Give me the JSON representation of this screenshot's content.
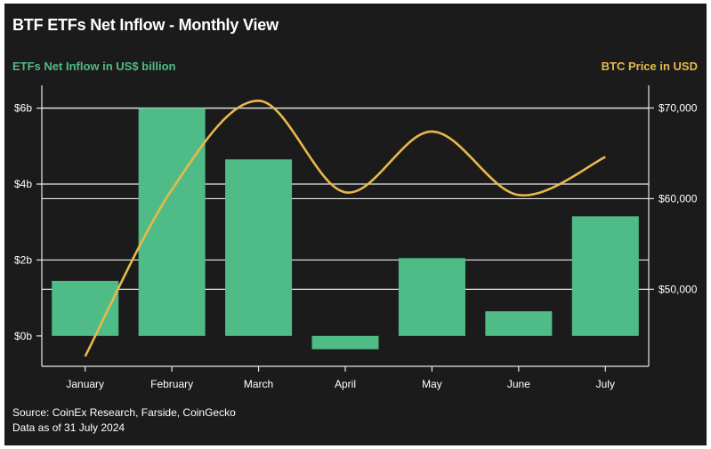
{
  "chart_data": {
    "type": "bar",
    "title": "BTF ETFs Net Inflow - Monthly View",
    "categories": [
      "January",
      "February",
      "March",
      "April",
      "May",
      "June",
      "July"
    ],
    "series": [
      {
        "name": "ETFs Net Inflow in US$ billion",
        "type": "bar",
        "axis": "left",
        "color": "#4fbb87",
        "values": [
          1.45,
          6.0,
          4.65,
          -0.35,
          2.05,
          0.65,
          3.15
        ]
      },
      {
        "name": "BTC Price in USD",
        "type": "line",
        "axis": "right",
        "color": "#e8b94a",
        "values": [
          42600,
          61000,
          70800,
          60700,
          67400,
          60400,
          64600
        ]
      }
    ],
    "left_axis": {
      "label": "ETFs Net Inflow in US$ billion",
      "range": [
        -0.8,
        6.6
      ],
      "ticks": [
        0,
        2,
        4,
        6
      ],
      "tick_labels": [
        "$0b",
        "$2b",
        "$4b",
        "$6b"
      ]
    },
    "right_axis": {
      "label": "BTC Price in USD",
      "range": [
        41500,
        72500
      ],
      "ticks": [
        50000,
        60000,
        70000
      ],
      "tick_labels": [
        "$50,000",
        "$60,000",
        "$70,000"
      ]
    },
    "grid": "horizontal",
    "legend": "none",
    "colors": {
      "background": "#1b1b1b",
      "bars": "#4fbb87",
      "line": "#e8b94a",
      "text": "#ffffff"
    }
  },
  "footer": {
    "source": "Source: CoinEx Research, Farside, CoinGecko",
    "asof": "Data as of 31 July 2024"
  }
}
